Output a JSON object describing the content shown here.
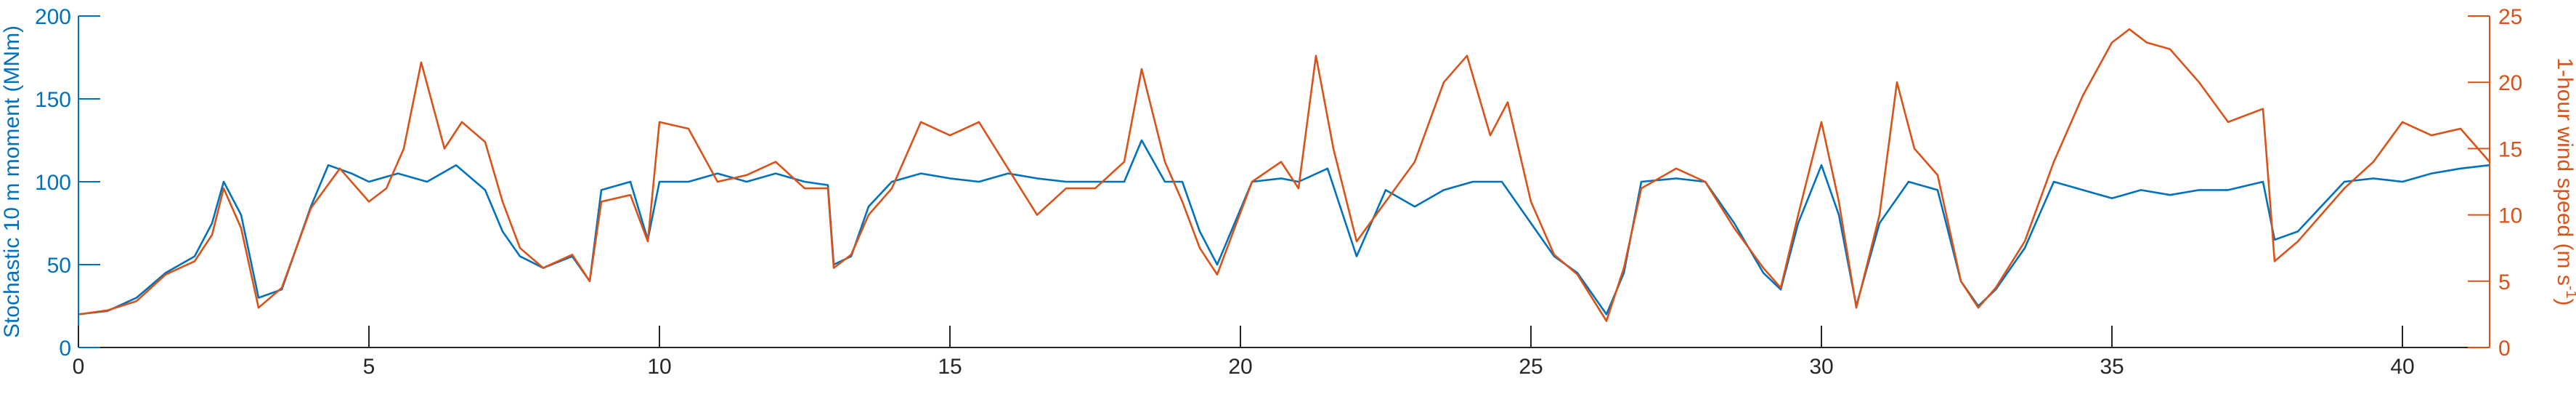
{
  "chart_data": {
    "type": "line",
    "title": "",
    "xlabel": "",
    "xlim": [
      0,
      41.5
    ],
    "xticks": [
      0,
      5,
      10,
      15,
      20,
      25,
      30,
      35,
      40
    ],
    "x_tick_labels": [
      "0",
      "5",
      "10",
      "15",
      "20",
      "25",
      "30",
      "35",
      "40"
    ],
    "y_left": {
      "label": "Stochastic 10 m moment (MNm)",
      "lim": [
        0,
        200
      ],
      "ticks": [
        0,
        50,
        100,
        150,
        200
      ],
      "tick_labels": [
        "0",
        "50",
        "100",
        "150",
        "200"
      ],
      "color": "#0072BD"
    },
    "y_right": {
      "label": "1-hour wind speed (m s-1)",
      "lim": [
        0,
        25
      ],
      "ticks": [
        0,
        5,
        10,
        15,
        20,
        25
      ],
      "tick_labels": [
        "0",
        "5",
        "10",
        "15",
        "20",
        "25"
      ],
      "color": "#D95319"
    },
    "grid": false,
    "series": [
      {
        "axis": "left",
        "color": "#0072BD",
        "points": [
          [
            0,
            20
          ],
          [
            0.5,
            22
          ],
          [
            1,
            30
          ],
          [
            1.5,
            45
          ],
          [
            2,
            55
          ],
          [
            2.3,
            75
          ],
          [
            2.5,
            100
          ],
          [
            2.8,
            80
          ],
          [
            3.1,
            30
          ],
          [
            3.5,
            35
          ],
          [
            4,
            85
          ],
          [
            4.3,
            110
          ],
          [
            4.7,
            105
          ],
          [
            5,
            100
          ],
          [
            5.5,
            105
          ],
          [
            6,
            100
          ],
          [
            6.5,
            110
          ],
          [
            7,
            95
          ],
          [
            7.3,
            70
          ],
          [
            7.6,
            55
          ],
          [
            8,
            48
          ],
          [
            8.5,
            55
          ],
          [
            8.8,
            40
          ],
          [
            9,
            95
          ],
          [
            9.5,
            100
          ],
          [
            9.8,
            65
          ],
          [
            10,
            100
          ],
          [
            10.5,
            100
          ],
          [
            11,
            105
          ],
          [
            11.5,
            100
          ],
          [
            12,
            105
          ],
          [
            12.5,
            100
          ],
          [
            12.9,
            98
          ],
          [
            13,
            50
          ],
          [
            13.3,
            55
          ],
          [
            13.6,
            85
          ],
          [
            14,
            100
          ],
          [
            14.5,
            105
          ],
          [
            15,
            102
          ],
          [
            15.5,
            100
          ],
          [
            16,
            105
          ],
          [
            16.5,
            102
          ],
          [
            17,
            100
          ],
          [
            17.5,
            100
          ],
          [
            18,
            100
          ],
          [
            18.3,
            125
          ],
          [
            18.7,
            100
          ],
          [
            19,
            100
          ],
          [
            19.3,
            70
          ],
          [
            19.6,
            50
          ],
          [
            19.9,
            75
          ],
          [
            20.2,
            100
          ],
          [
            20.7,
            102
          ],
          [
            21,
            100
          ],
          [
            21.5,
            108
          ],
          [
            22,
            55
          ],
          [
            22.5,
            95
          ],
          [
            23,
            85
          ],
          [
            23.5,
            95
          ],
          [
            24,
            100
          ],
          [
            24.5,
            100
          ],
          [
            25,
            75
          ],
          [
            25.4,
            55
          ],
          [
            25.8,
            45
          ],
          [
            26.3,
            20
          ],
          [
            26.6,
            45
          ],
          [
            26.9,
            100
          ],
          [
            27.5,
            102
          ],
          [
            28,
            100
          ],
          [
            28.5,
            75
          ],
          [
            29,
            45
          ],
          [
            29.3,
            35
          ],
          [
            29.6,
            75
          ],
          [
            30,
            110
          ],
          [
            30.3,
            80
          ],
          [
            30.6,
            25
          ],
          [
            31,
            75
          ],
          [
            31.5,
            100
          ],
          [
            32,
            95
          ],
          [
            32.4,
            40
          ],
          [
            32.7,
            25
          ],
          [
            33,
            35
          ],
          [
            33.5,
            60
          ],
          [
            34,
            100
          ],
          [
            34.5,
            95
          ],
          [
            35,
            90
          ],
          [
            35.5,
            95
          ],
          [
            36,
            92
          ],
          [
            36.5,
            95
          ],
          [
            37,
            95
          ],
          [
            37.6,
            100
          ],
          [
            37.8,
            65
          ],
          [
            38.2,
            70
          ],
          [
            38.6,
            85
          ],
          [
            39,
            100
          ],
          [
            39.5,
            102
          ],
          [
            40,
            100
          ],
          [
            40.5,
            105
          ],
          [
            41,
            108
          ],
          [
            41.5,
            110
          ]
        ]
      },
      {
        "axis": "right",
        "color": "#D95319",
        "points": [
          [
            0,
            2.5
          ],
          [
            0.5,
            2.8
          ],
          [
            1,
            3.5
          ],
          [
            1.5,
            5.5
          ],
          [
            2,
            6.5
          ],
          [
            2.3,
            8.5
          ],
          [
            2.5,
            12
          ],
          [
            2.8,
            9
          ],
          [
            3.1,
            3
          ],
          [
            3.5,
            4.5
          ],
          [
            4,
            10.5
          ],
          [
            4.5,
            13.5
          ],
          [
            5,
            11
          ],
          [
            5.3,
            12
          ],
          [
            5.6,
            15
          ],
          [
            5.9,
            21.5
          ],
          [
            6.3,
            15
          ],
          [
            6.6,
            17
          ],
          [
            7,
            15.5
          ],
          [
            7.3,
            11
          ],
          [
            7.6,
            7.5
          ],
          [
            8,
            6
          ],
          [
            8.5,
            7
          ],
          [
            8.8,
            5
          ],
          [
            9,
            11
          ],
          [
            9.5,
            11.5
          ],
          [
            9.8,
            8
          ],
          [
            10,
            17
          ],
          [
            10.5,
            16.5
          ],
          [
            11,
            12.5
          ],
          [
            11.5,
            13
          ],
          [
            12,
            14
          ],
          [
            12.5,
            12
          ],
          [
            12.9,
            12
          ],
          [
            13,
            6
          ],
          [
            13.3,
            7
          ],
          [
            13.6,
            10
          ],
          [
            14,
            12
          ],
          [
            14.5,
            17
          ],
          [
            15,
            16
          ],
          [
            15.5,
            17
          ],
          [
            16,
            13.5
          ],
          [
            16.5,
            10
          ],
          [
            17,
            12
          ],
          [
            17.5,
            12
          ],
          [
            18,
            14
          ],
          [
            18.3,
            21
          ],
          [
            18.7,
            14
          ],
          [
            19,
            11
          ],
          [
            19.3,
            7.5
          ],
          [
            19.6,
            5.5
          ],
          [
            19.9,
            9
          ],
          [
            20.2,
            12.5
          ],
          [
            20.7,
            14
          ],
          [
            21,
            12
          ],
          [
            21.3,
            22
          ],
          [
            21.6,
            15
          ],
          [
            22,
            8
          ],
          [
            22.5,
            11
          ],
          [
            23,
            14
          ],
          [
            23.5,
            20
          ],
          [
            23.9,
            22
          ],
          [
            24.3,
            16
          ],
          [
            24.6,
            18.5
          ],
          [
            25,
            11
          ],
          [
            25.4,
            7
          ],
          [
            25.8,
            5.5
          ],
          [
            26.3,
            2
          ],
          [
            26.6,
            6
          ],
          [
            26.9,
            12
          ],
          [
            27.5,
            13.5
          ],
          [
            28,
            12.5
          ],
          [
            28.5,
            9
          ],
          [
            29,
            6
          ],
          [
            29.3,
            4.5
          ],
          [
            29.6,
            10
          ],
          [
            30,
            17
          ],
          [
            30.3,
            11
          ],
          [
            30.6,
            3
          ],
          [
            31,
            10
          ],
          [
            31.3,
            20
          ],
          [
            31.6,
            15
          ],
          [
            32,
            13
          ],
          [
            32.4,
            5
          ],
          [
            32.7,
            3
          ],
          [
            33,
            4.5
          ],
          [
            33.5,
            8
          ],
          [
            34,
            14
          ],
          [
            34.5,
            19
          ],
          [
            35,
            23
          ],
          [
            35.3,
            24
          ],
          [
            35.6,
            23
          ],
          [
            36,
            22.5
          ],
          [
            36.5,
            20
          ],
          [
            37,
            17
          ],
          [
            37.6,
            18
          ],
          [
            37.8,
            6.5
          ],
          [
            38.2,
            8
          ],
          [
            38.6,
            10
          ],
          [
            39,
            12
          ],
          [
            39.5,
            14
          ],
          [
            40,
            17
          ],
          [
            40.5,
            16
          ],
          [
            41,
            16.5
          ],
          [
            41.5,
            14
          ]
        ]
      }
    ]
  }
}
